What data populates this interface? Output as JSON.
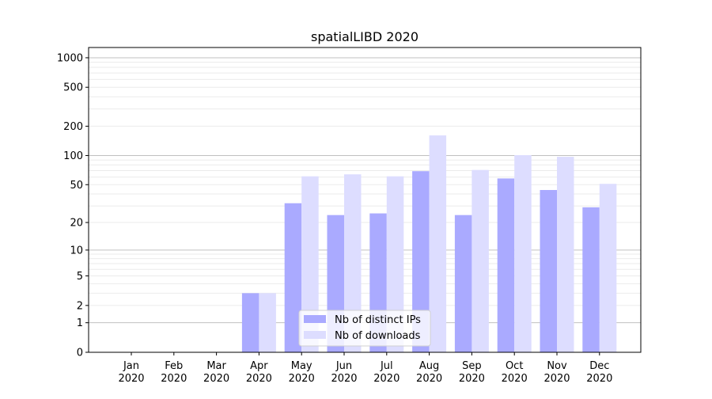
{
  "chart_data": {
    "type": "bar",
    "title": "spatialLIBD 2020",
    "xlabel": "",
    "ylabel": "",
    "yscale": "symlog",
    "ylim": [
      0,
      1200
    ],
    "yticks": [
      0,
      1,
      2,
      5,
      10,
      20,
      50,
      100,
      200,
      500,
      1000
    ],
    "grid": true,
    "legend_position": "lower center",
    "categories": [
      "Jan\n2020",
      "Feb\n2020",
      "Mar\n2020",
      "Apr\n2020",
      "May\n2020",
      "Jun\n2020",
      "Jul\n2020",
      "Aug\n2020",
      "Sep\n2020",
      "Oct\n2020",
      "Nov\n2020",
      "Dec\n2020"
    ],
    "series": [
      {
        "name": "Nb of distinct IPs",
        "color": "#aaaaff",
        "values": [
          0,
          0,
          0,
          3,
          32,
          24,
          25,
          69,
          24,
          58,
          44,
          29
        ]
      },
      {
        "name": "Nb of downloads",
        "color": "#ddddff",
        "values": [
          0,
          0,
          0,
          3,
          61,
          64,
          61,
          161,
          71,
          101,
          97,
          51
        ]
      }
    ]
  }
}
